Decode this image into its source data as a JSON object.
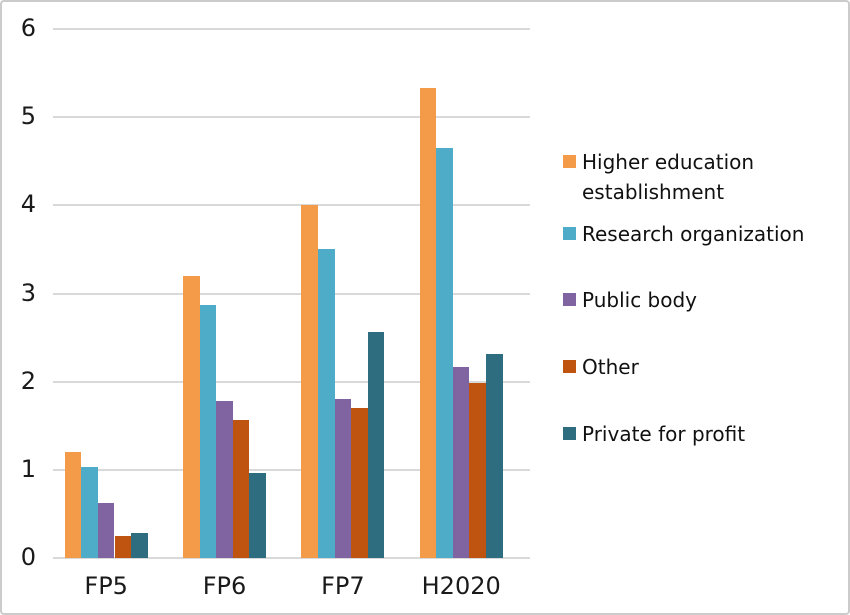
{
  "chart_data": {
    "type": "bar",
    "title": "",
    "xlabel": "",
    "ylabel": "",
    "categories": [
      "FP5",
      "FP6",
      "FP7",
      "H2020"
    ],
    "series": [
      {
        "name": "Higher education establishment",
        "color": "#F49B4A",
        "values": [
          1.2,
          3.2,
          4.0,
          5.33
        ]
      },
      {
        "name": "Research organization",
        "color": "#4EACC8",
        "values": [
          1.03,
          2.87,
          3.5,
          4.65
        ]
      },
      {
        "name": "Public body",
        "color": "#8064A2",
        "values": [
          0.62,
          1.78,
          1.8,
          2.17
        ]
      },
      {
        "name": "Other",
        "color": "#BE540F",
        "values": [
          0.25,
          1.56,
          1.7,
          1.98
        ]
      },
      {
        "name": "Private for profit",
        "color": "#2E6C80",
        "values": [
          0.28,
          0.96,
          2.56,
          2.31
        ]
      }
    ],
    "ylim": [
      0,
      6
    ],
    "yticks": [
      0,
      1,
      2,
      3,
      4,
      5,
      6
    ],
    "grid": true,
    "gridline_color": "#d9d9d9",
    "legend_position": "right",
    "background_color": "#ffffff",
    "border_color": "#cbcbcb"
  }
}
